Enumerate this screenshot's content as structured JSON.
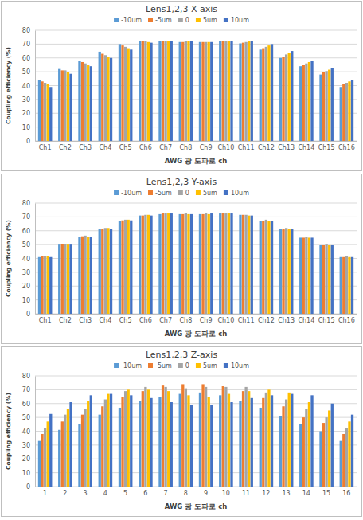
{
  "chart_data": [
    {
      "type": "bar",
      "title": "Lens1,2,3 X-axis",
      "x_label": "AWG 광 도파로 ch",
      "y_label": "Coupling efficiency (%)",
      "categories": [
        "Ch1",
        "Ch2",
        "Ch3",
        "Ch4",
        "Ch5",
        "Ch6",
        "Ch7",
        "Ch8",
        "Ch9",
        "Ch10",
        "Ch11",
        "Ch12",
        "Ch13",
        "Ch14",
        "Ch15",
        "Ch16"
      ],
      "series": [
        {
          "name": "-10um",
          "color": "#5b9bd5",
          "values": [
            44,
            52,
            58,
            64.5,
            70,
            72,
            72,
            71.5,
            71.5,
            72,
            70.5,
            66,
            60,
            54,
            48,
            39
          ]
        },
        {
          "name": "-5um",
          "color": "#ed7d31",
          "values": [
            43,
            51,
            57,
            63,
            69,
            72,
            72,
            71.5,
            71.5,
            72,
            71,
            67,
            61,
            55,
            49.5,
            41
          ]
        },
        {
          "name": "0",
          "color": "#a5a5a5",
          "values": [
            42,
            51,
            56,
            62,
            68,
            72,
            72.5,
            72,
            71.5,
            72,
            71.5,
            68,
            62.5,
            56,
            50.5,
            42
          ]
        },
        {
          "name": "5um",
          "color": "#ffc000",
          "values": [
            41,
            50,
            55,
            61,
            67,
            71.5,
            72.5,
            72,
            71.5,
            72,
            72,
            69,
            63.5,
            57,
            51.5,
            43
          ]
        },
        {
          "name": "10um",
          "color": "#4472c4",
          "values": [
            39,
            48.5,
            54,
            60,
            66,
            71,
            72.5,
            72,
            71.5,
            72,
            72.5,
            70,
            65,
            58,
            52.5,
            44
          ]
        }
      ],
      "ylim": [
        0,
        80
      ],
      "yticks": [
        0,
        10,
        20,
        30,
        40,
        50,
        60,
        70,
        80
      ],
      "grid": true,
      "legend": "top"
    },
    {
      "type": "bar",
      "title": "Lens1,2,3 Y-axis",
      "x_label": "AWG 광 도파로 ch",
      "y_label": "Coupling efficiency (%)",
      "categories": [
        "Ch1",
        "Ch2",
        "Ch3",
        "Ch4",
        "Ch5",
        "Ch6",
        "Ch7",
        "Ch8",
        "Ch9",
        "Ch10",
        "Ch11",
        "Ch12",
        "Ch13",
        "Ch14",
        "Ch15",
        "Ch16"
      ],
      "series": [
        {
          "name": "-10um",
          "color": "#5b9bd5",
          "values": [
            41,
            50,
            55.5,
            61,
            67,
            71,
            72,
            72,
            72,
            72.5,
            71.5,
            67,
            61,
            55,
            49.5,
            41
          ]
        },
        {
          "name": "-5um",
          "color": "#ed7d31",
          "values": [
            41.5,
            50.5,
            56,
            61.5,
            67.5,
            71,
            72.5,
            72,
            72,
            72.5,
            71.5,
            67,
            61,
            55,
            49.5,
            41
          ]
        },
        {
          "name": "0",
          "color": "#a5a5a5",
          "values": [
            41.5,
            50.5,
            56.5,
            62,
            68,
            71.5,
            72.5,
            72.5,
            72.5,
            72.5,
            71.5,
            68,
            62,
            55.5,
            50,
            41.5
          ]
        },
        {
          "name": "5um",
          "color": "#ffc000",
          "values": [
            41.5,
            50,
            55.5,
            62,
            68,
            71.5,
            72.5,
            72,
            72,
            72.5,
            71,
            67,
            61,
            55,
            49.5,
            41
          ]
        },
        {
          "name": "10um",
          "color": "#4472c4",
          "values": [
            41,
            50,
            55.5,
            61.5,
            67.5,
            71,
            72.5,
            72,
            72.5,
            72.5,
            71,
            67,
            61,
            55,
            49.5,
            41
          ]
        }
      ],
      "ylim": [
        0,
        80
      ],
      "yticks": [
        0,
        10,
        20,
        30,
        40,
        50,
        60,
        70,
        80
      ],
      "grid": true,
      "legend": "top"
    },
    {
      "type": "bar",
      "title": "Lens1,2,3 Z-axis",
      "x_label": "AWG 광 도파로 ch",
      "y_label": "Coupling efficiency (%)",
      "categories": [
        "1",
        "2",
        "3",
        "4",
        "5",
        "6",
        "7",
        "8",
        "9",
        "10",
        "11",
        "12",
        "13",
        "14",
        "15",
        "16"
      ],
      "series": [
        {
          "name": "-10um",
          "color": "#5b9bd5",
          "values": [
            33,
            41,
            45,
            52,
            57,
            62,
            65,
            67,
            68,
            66,
            62,
            57,
            51,
            45,
            40,
            33
          ]
        },
        {
          "name": "-5um",
          "color": "#ed7d31",
          "values": [
            38,
            47,
            52,
            58,
            65,
            69,
            73,
            74,
            74,
            72.5,
            69,
            64,
            58,
            50,
            46,
            38
          ]
        },
        {
          "name": "0",
          "color": "#a5a5a5",
          "values": [
            42,
            52,
            56,
            63,
            69,
            72,
            72,
            71,
            72,
            72,
            72,
            68,
            63,
            56,
            50,
            42
          ]
        },
        {
          "name": "5um",
          "color": "#ffc000",
          "values": [
            47,
            56,
            62,
            67,
            70,
            70,
            69,
            66,
            65,
            67,
            69,
            70,
            68,
            61,
            55,
            47
          ]
        },
        {
          "name": "10um",
          "color": "#4472c4",
          "values": [
            52.5,
            61,
            66,
            67,
            66,
            64,
            61,
            59,
            59,
            61,
            64,
            66,
            67,
            66,
            60,
            52
          ]
        }
      ],
      "ylim": [
        0,
        80
      ],
      "yticks": [
        0,
        10,
        20,
        30,
        40,
        50,
        60,
        70,
        80
      ],
      "grid": true,
      "legend": "top"
    }
  ]
}
